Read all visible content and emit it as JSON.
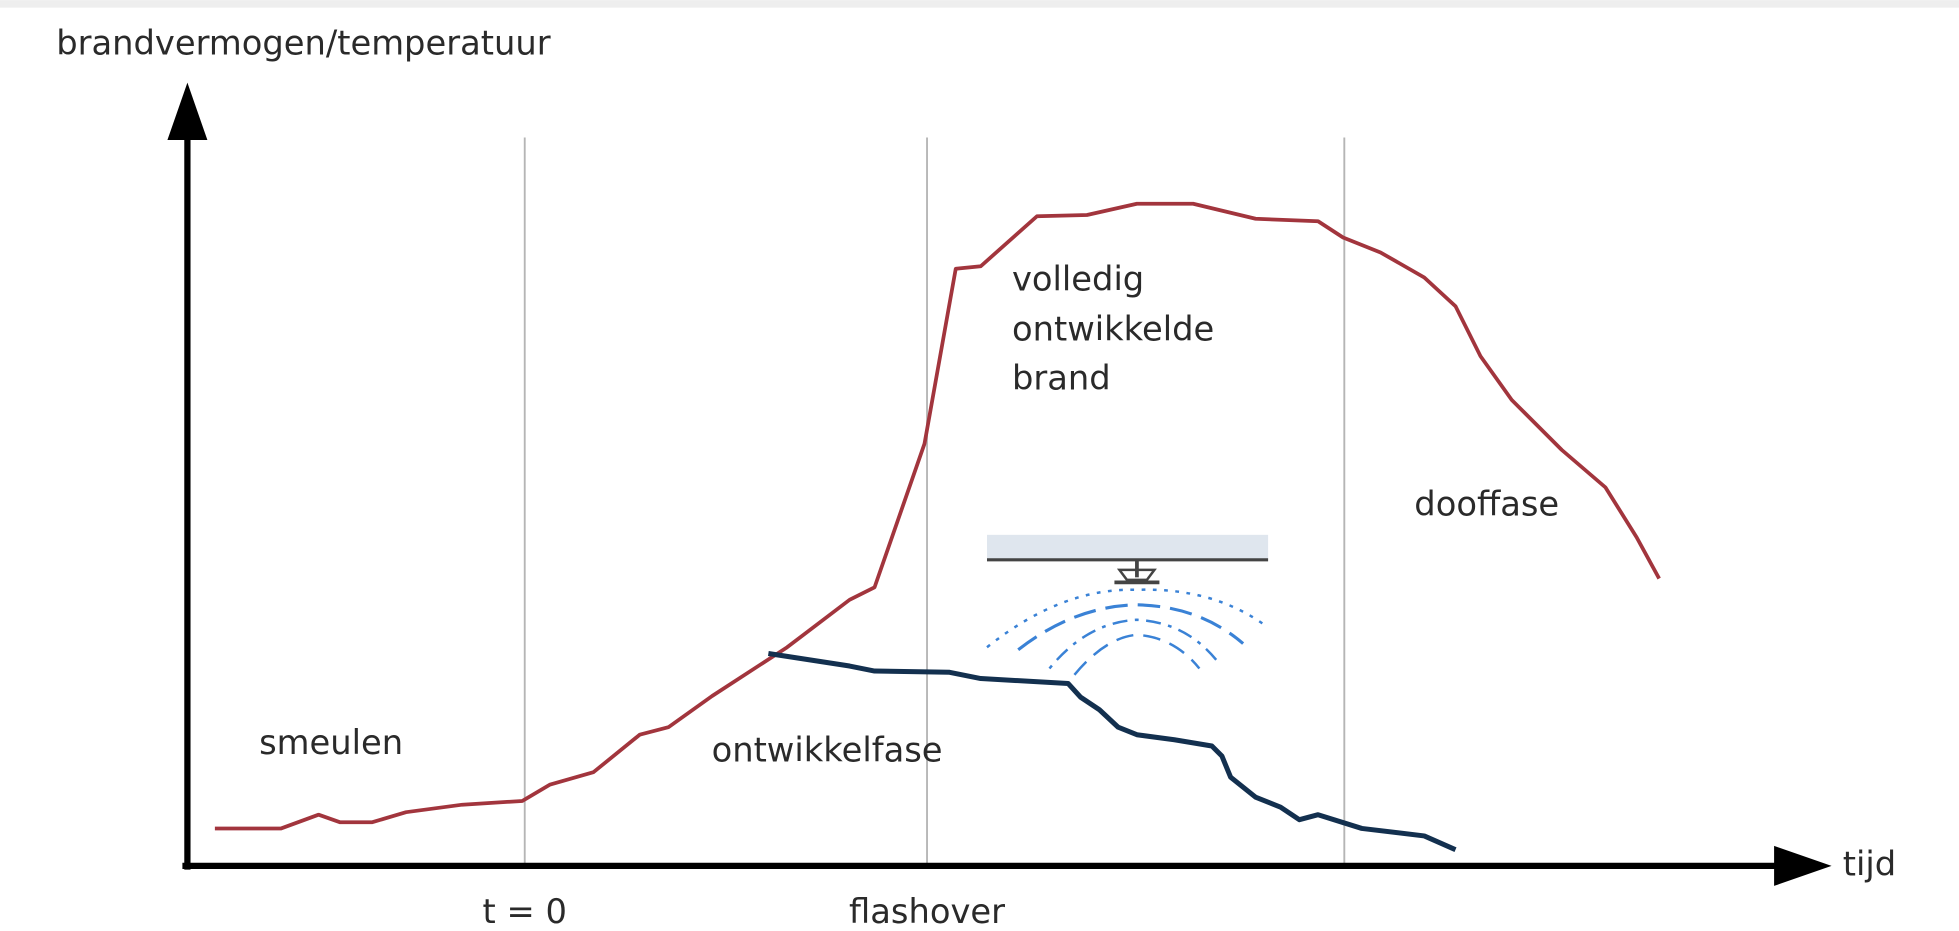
{
  "y_axis_label": "brandvermogen/temperatuur",
  "x_axis_label": "tijd",
  "markers": [
    "t = 0",
    "flashover"
  ],
  "phases": {
    "smoldering": "smeulen",
    "growth": "ontwikkelfase",
    "fully_developed": [
      "volledig",
      "ontwikkelde",
      "brand"
    ],
    "decay": "dooffase"
  }
}
